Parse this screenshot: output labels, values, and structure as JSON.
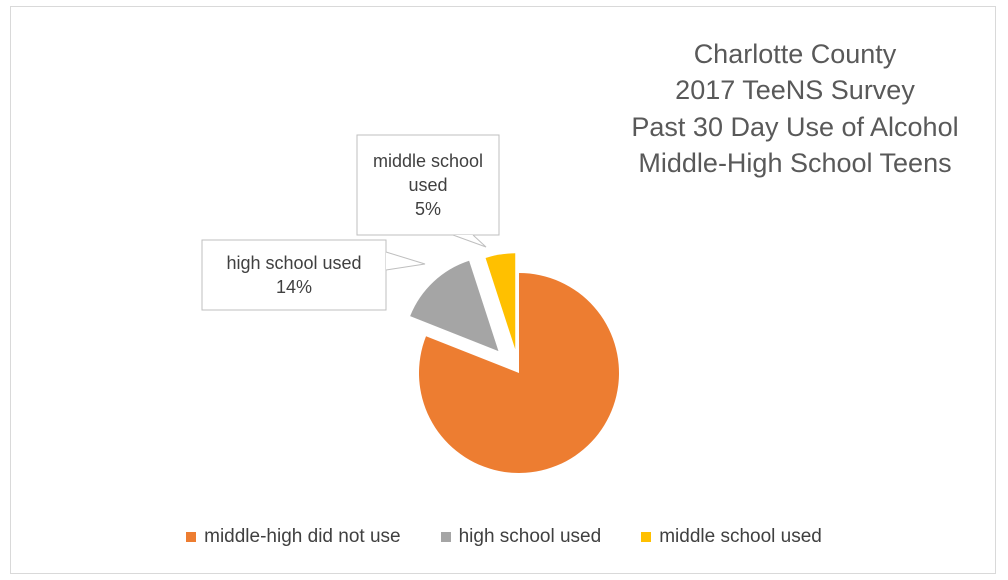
{
  "chart_data": {
    "type": "pie",
    "title_lines": [
      "Charlotte County",
      "2017 TeeNS Survey",
      "Past 30 Day Use of Alcohol",
      "Middle-High School Teens"
    ],
    "slices": [
      {
        "name": "middle-high did not use",
        "value": 81,
        "color": "#ED7D31",
        "label": ""
      },
      {
        "name": "high school used",
        "value": 14,
        "color": "#A5A5A5",
        "label_lines": [
          "high school used",
          "14%"
        ]
      },
      {
        "name": "middle school used",
        "value": 5,
        "color": "#FFC000",
        "label_lines": [
          "middle school",
          "used",
          "5%"
        ]
      }
    ],
    "legend": {
      "position": "bottom"
    }
  }
}
